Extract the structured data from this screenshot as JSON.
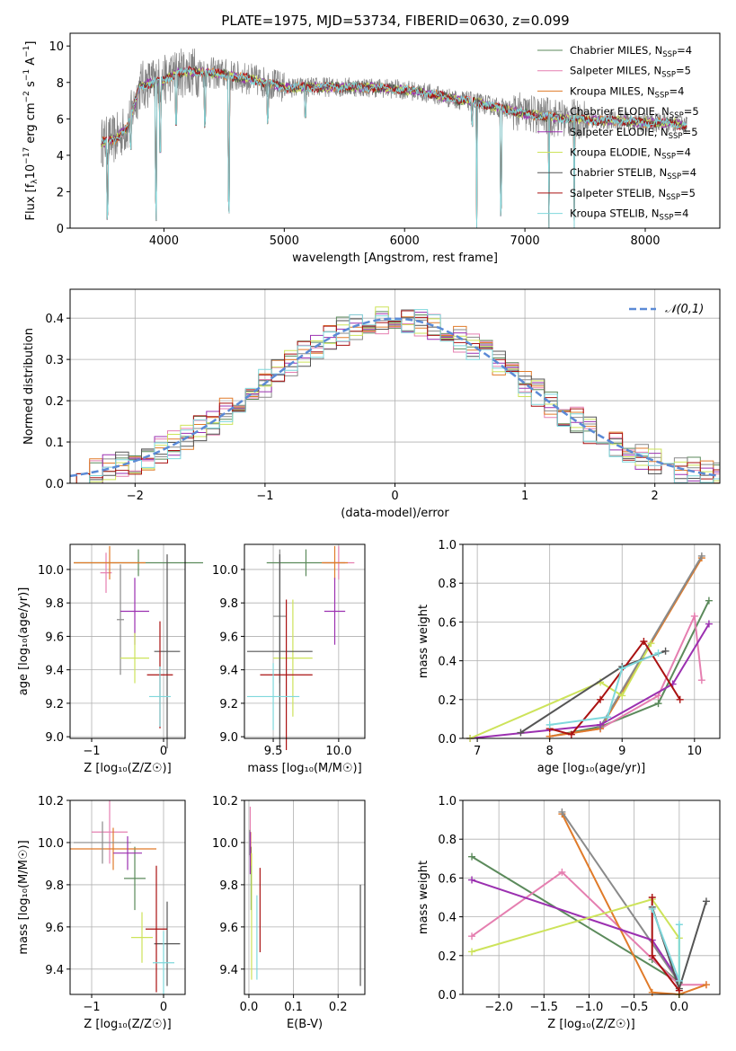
{
  "figure": {
    "title": "PLATE=1975, MJD=53734, FIBERID=0630, z=0.099"
  },
  "colors": {
    "Chabrier MILES": "#5b8a5b",
    "Salpeter MILES": "#e57fb0",
    "Kroupa MILES": "#e07b2a",
    "Chabrier ELODIE": "#8a8a8a",
    "Salpeter ELODIE": "#9b30b0",
    "Kroupa ELODIE": "#cde35a",
    "Chabrier STELIB": "#555555",
    "Salpeter STELIB": "#aa1111",
    "Kroupa STELIB": "#7fd8dc"
  },
  "chart_data": [
    {
      "id": "spectrum",
      "type": "line",
      "title": "PLATE=1975, MJD=53734, FIBERID=0630, z=0.099",
      "xlabel": "wavelength [Angstrom, rest frame]",
      "ylabel_parts": [
        "Flux [f",
        "λ",
        "10",
        "−17",
        " erg cm",
        "−2",
        " s",
        "−1",
        " A",
        "−1",
        "]"
      ],
      "xlim": [
        3220,
        8620
      ],
      "ylim": [
        0,
        10.7
      ],
      "xticks": [
        4000,
        5000,
        6000,
        7000,
        8000
      ],
      "yticks": [
        0,
        2,
        4,
        6,
        8,
        10
      ],
      "grid": false,
      "legend_position": "top-right",
      "legend": [
        {
          "model": "Chabrier MILES",
          "text": "Chabrier MILES, N",
          "sub": "SSP",
          "n": "=4"
        },
        {
          "model": "Salpeter MILES",
          "text": "Salpeter MILES, N",
          "sub": "SSP",
          "n": "=5"
        },
        {
          "model": "Kroupa MILES",
          "text": "Kroupa MILES, N",
          "sub": "SSP",
          "n": "=4"
        },
        {
          "model": "Chabrier ELODIE",
          "text": "Chabrier ELODIE, N",
          "sub": "SSP",
          "n": "=5"
        },
        {
          "model": "Salpeter ELODIE",
          "text": "Salpeter ELODIE, N",
          "sub": "SSP",
          "n": "=5"
        },
        {
          "model": "Kroupa ELODIE",
          "text": "Kroupa ELODIE, N",
          "sub": "SSP",
          "n": "=4"
        },
        {
          "model": "Chabrier STELIB",
          "text": "Chabrier STELIB, N",
          "sub": "SSP",
          "n": "=4"
        },
        {
          "model": "Salpeter STELIB",
          "text": "Salpeter STELIB, N",
          "sub": "SSP",
          "n": "=5"
        },
        {
          "model": "Kroupa STELIB",
          "text": "Kroupa STELIB, N",
          "sub": "SSP",
          "n": "=4"
        }
      ],
      "continuum": {
        "x": [
          3480,
          3600,
          3700,
          3800,
          3900,
          4000,
          4100,
          4200,
          4300,
          4400,
          4500,
          4600,
          4700,
          4800,
          4900,
          5000,
          5200,
          5400,
          5600,
          5800,
          6000,
          6200,
          6400,
          6600,
          6800,
          7000,
          7200,
          7400,
          7600,
          7800,
          8000,
          8200,
          8350
        ],
        "y": [
          4.7,
          4.9,
          5.6,
          7.8,
          8.0,
          8.1,
          8.5,
          8.6,
          8.55,
          8.5,
          8.45,
          8.3,
          8.2,
          8.05,
          7.9,
          7.7,
          7.75,
          7.75,
          7.75,
          7.7,
          7.6,
          7.4,
          7.1,
          6.9,
          6.6,
          6.3,
          6.1,
          6.0,
          5.9,
          5.9,
          5.8,
          5.8,
          5.6
        ]
      },
      "dips": [
        {
          "x": 3530,
          "y": 0
        },
        {
          "x": 3725,
          "y": 4.2
        },
        {
          "x": 3935,
          "y": 0
        },
        {
          "x": 3969,
          "y": 3.5
        },
        {
          "x": 4101,
          "y": 5.2
        },
        {
          "x": 4340,
          "y": 5.2
        },
        {
          "x": 4540,
          "y": 0
        },
        {
          "x": 4861,
          "y": 5.6
        },
        {
          "x": 5175,
          "y": 5.8
        },
        {
          "x": 6563,
          "y": 5.5
        },
        {
          "x": 6600,
          "y": 0
        },
        {
          "x": 6800,
          "y": 0
        },
        {
          "x": 7200,
          "y": 0
        },
        {
          "x": 7410,
          "y": 0
        }
      ]
    },
    {
      "id": "residuals",
      "type": "area",
      "xlabel": "(data-model)/error",
      "ylabel": "Normed distribution",
      "xlim": [
        -2.5,
        2.5
      ],
      "ylim": [
        0,
        0.47
      ],
      "xticks": [
        -2,
        -1,
        0,
        1,
        2
      ],
      "yticks": [
        0.0,
        0.1,
        0.2,
        0.3,
        0.4
      ],
      "grid": true,
      "legend_position": "top-right",
      "legend_label": "𝒩(0,1)",
      "bin_width": 0.1
    },
    {
      "id": "age-vs-Z",
      "type": "scatter",
      "xlabel": "Z [log₁₀(Z/Z☉)]",
      "ylabel": "age  [log₁₀(age/yr)]",
      "xlim": [
        -1.3,
        0.3
      ],
      "ylim": [
        8.99,
        10.15
      ],
      "xticks": [
        -1,
        0
      ],
      "yticks": [
        9.0,
        9.2,
        9.4,
        9.6,
        9.8,
        10.0
      ],
      "grid": true,
      "points": [
        {
          "model": "Chabrier MILES",
          "x": -0.35,
          "xerr": 0.9,
          "y": 10.04,
          "yerr": 0.08
        },
        {
          "model": "Salpeter MILES",
          "x": -0.8,
          "xerr": 0.08,
          "y": 9.98,
          "yerr": 0.12
        },
        {
          "model": "Kroupa MILES",
          "x": -0.75,
          "xerr": 0.5,
          "y": 10.04,
          "yerr": 0.1
        },
        {
          "model": "Chabrier ELODIE",
          "x": -0.6,
          "xerr": 0.05,
          "y": 9.7,
          "yerr": 0.33
        },
        {
          "model": "Salpeter ELODIE",
          "x": -0.4,
          "xerr": 0.2,
          "y": 9.75,
          "yerr": 0.2
        },
        {
          "model": "Kroupa ELODIE",
          "x": -0.4,
          "xerr": 0.2,
          "y": 9.47,
          "yerr": 0.15
        },
        {
          "model": "Chabrier STELIB",
          "x": 0.05,
          "xerr": 0.18,
          "y": 9.51,
          "yerr": 0.58
        },
        {
          "model": "Salpeter STELIB",
          "x": -0.05,
          "xerr": 0.18,
          "y": 9.37,
          "yerr": 0.32
        },
        {
          "model": "Kroupa STELIB",
          "x": -0.05,
          "xerr": 0.15,
          "y": 9.24,
          "yerr": 0.18
        }
      ]
    },
    {
      "id": "age-vs-mass",
      "type": "scatter",
      "xlabel": "mass [log₁₀(M/M☉)]",
      "ylabel": "",
      "xlim": [
        9.28,
        10.2
      ],
      "ylim": [
        8.99,
        10.15
      ],
      "xticks": [
        9.5,
        10.0
      ],
      "yticks": [
        9.0,
        9.2,
        9.4,
        9.6,
        9.8,
        10.0
      ],
      "grid": true,
      "points": [
        {
          "model": "Chabrier MILES",
          "x": 9.75,
          "xerr": 0.3,
          "y": 10.04,
          "yerr": 0.08
        },
        {
          "model": "Salpeter MILES",
          "x": 10.0,
          "xerr": 0.12,
          "y": 10.04,
          "yerr": 0.1
        },
        {
          "model": "Kroupa MILES",
          "x": 9.97,
          "xerr": 0.1,
          "y": 10.04,
          "yerr": 0.1
        },
        {
          "model": "Chabrier ELODIE",
          "x": 9.55,
          "xerr": 0.05,
          "y": 9.72,
          "yerr": 0.4
        },
        {
          "model": "Salpeter ELODIE",
          "x": 9.97,
          "xerr": 0.08,
          "y": 9.75,
          "yerr": 0.2
        },
        {
          "model": "Kroupa ELODIE",
          "x": 9.65,
          "xerr": 0.15,
          "y": 9.47,
          "yerr": 0.35
        },
        {
          "model": "Chabrier STELIB",
          "x": 9.55,
          "xerr": 0.25,
          "y": 9.51,
          "yerr": 0.58
        },
        {
          "model": "Salpeter STELIB",
          "x": 9.6,
          "xerr": 0.2,
          "y": 9.37,
          "yerr": 0.45
        },
        {
          "model": "Kroupa STELIB",
          "x": 9.5,
          "xerr": 0.2,
          "y": 9.24,
          "yerr": 0.2
        }
      ]
    },
    {
      "id": "mass-weight-vs-age",
      "type": "line",
      "xlabel": "age  [log₁₀(age/yr)]",
      "ylabel": "mass weight",
      "xlim": [
        6.8,
        10.35
      ],
      "ylim": [
        0,
        1.0
      ],
      "xticks": [
        7,
        8,
        9,
        10
      ],
      "yticks": [
        0.0,
        0.2,
        0.4,
        0.6,
        0.8,
        1.0
      ],
      "grid": true,
      "series": [
        {
          "model": "Chabrier MILES",
          "x": [
            8.0,
            8.7,
            9.5,
            10.2
          ],
          "y": [
            0.01,
            0.06,
            0.18,
            0.71
          ]
        },
        {
          "model": "Salpeter MILES",
          "x": [
            8.0,
            8.7,
            9.5,
            10.0,
            10.1
          ],
          "y": [
            0.01,
            0.05,
            0.22,
            0.63,
            0.3
          ]
        },
        {
          "model": "Kroupa MILES",
          "x": [
            8.0,
            8.7,
            10.1
          ],
          "y": [
            0.01,
            0.05,
            0.93
          ]
        },
        {
          "model": "Chabrier ELODIE",
          "x": [
            8.7,
            10.1
          ],
          "y": [
            0.06,
            0.94
          ]
        },
        {
          "model": "Salpeter ELODIE",
          "x": [
            6.9,
            8.7,
            9.7,
            10.2
          ],
          "y": [
            0.0,
            0.07,
            0.28,
            0.59
          ]
        },
        {
          "model": "Kroupa ELODIE",
          "x": [
            6.9,
            8.7,
            9.0,
            9.4
          ],
          "y": [
            0.0,
            0.29,
            0.22,
            0.49
          ]
        },
        {
          "model": "Chabrier STELIB",
          "x": [
            7.6,
            9.0,
            9.6
          ],
          "y": [
            0.03,
            0.37,
            0.45
          ]
        },
        {
          "model": "Salpeter STELIB",
          "x": [
            8.0,
            8.3,
            8.7,
            9.3,
            9.8
          ],
          "y": [
            0.05,
            0.02,
            0.2,
            0.5,
            0.2
          ]
        },
        {
          "model": "Kroupa STELIB",
          "x": [
            8.0,
            8.8,
            9.0,
            9.5
          ],
          "y": [
            0.07,
            0.11,
            0.36,
            0.44
          ]
        }
      ]
    },
    {
      "id": "mass-vs-Z",
      "type": "scatter",
      "xlabel": "Z [log₁₀(Z/Z☉)]",
      "ylabel": "mass [log₁₀(M/M☉)]",
      "xlim": [
        -1.3,
        0.3
      ],
      "ylim": [
        9.28,
        10.2
      ],
      "xticks": [
        -1,
        0
      ],
      "yticks": [
        9.4,
        9.6,
        9.8,
        10.0,
        10.2
      ],
      "grid": true,
      "points": [
        {
          "model": "Chabrier MILES",
          "x": -0.4,
          "xerr": 0.15,
          "y": 9.83,
          "yerr": 0.15
        },
        {
          "model": "Salpeter MILES",
          "x": -0.75,
          "xerr": 0.25,
          "y": 10.05,
          "yerr": 0.15
        },
        {
          "model": "Kroupa MILES",
          "x": -0.7,
          "xerr": 0.6,
          "y": 9.97,
          "yerr": 0.1
        },
        {
          "model": "Chabrier ELODIE",
          "x": -0.85,
          "xerr": 0.4,
          "y": 10.0,
          "yerr": 0.1
        },
        {
          "model": "Salpeter ELODIE",
          "x": -0.5,
          "xerr": 0.2,
          "y": 9.95,
          "yerr": 0.08
        },
        {
          "model": "Kroupa ELODIE",
          "x": -0.3,
          "xerr": 0.15,
          "y": 9.55,
          "yerr": 0.12
        },
        {
          "model": "Chabrier STELIB",
          "x": 0.05,
          "xerr": 0.18,
          "y": 9.52,
          "yerr": 0.2
        },
        {
          "model": "Salpeter STELIB",
          "x": -0.1,
          "xerr": 0.15,
          "y": 9.59,
          "yerr": 0.3
        },
        {
          "model": "Kroupa STELIB",
          "x": 0.0,
          "xerr": 0.15,
          "y": 9.43,
          "yerr": 0.15
        }
      ]
    },
    {
      "id": "mass-vs-ebv",
      "type": "scatter",
      "xlabel": "E(B-V)",
      "ylabel": "",
      "xlim": [
        -0.01,
        0.26
      ],
      "ylim": [
        9.28,
        10.2
      ],
      "xticks": [
        0.0,
        0.1,
        0.2
      ],
      "yticks": [
        9.4,
        9.6,
        9.8,
        10.0,
        10.2
      ],
      "grid": true,
      "points": [
        {
          "model": "Chabrier MILES",
          "x": 0.005,
          "y": 9.83,
          "yerr": 0.15
        },
        {
          "model": "Salpeter MILES",
          "x": 0.003,
          "y": 10.05,
          "yerr": 0.12
        },
        {
          "model": "Kroupa MILES",
          "x": 0.004,
          "y": 9.97,
          "yerr": 0.08
        },
        {
          "model": "Chabrier ELODIE",
          "x": 0.002,
          "y": 10.0,
          "yerr": 0.06
        },
        {
          "model": "Salpeter ELODIE",
          "x": 0.003,
          "y": 9.95,
          "yerr": 0.1
        },
        {
          "model": "Kroupa ELODIE",
          "x": 0.006,
          "y": 9.65,
          "yerr": 0.3
        },
        {
          "model": "Chabrier STELIB",
          "x": 0.25,
          "y": 9.56,
          "yerr": 0.24
        },
        {
          "model": "Salpeter STELIB",
          "x": 0.025,
          "y": 9.68,
          "yerr": 0.2
        },
        {
          "model": "Kroupa STELIB",
          "x": 0.018,
          "y": 9.55,
          "yerr": 0.2
        }
      ]
    },
    {
      "id": "mass-weight-vs-Z",
      "type": "line",
      "xlabel": "Z [log₁₀(Z/Z☉)]",
      "ylabel": "mass weight",
      "xlim": [
        -2.4,
        0.45
      ],
      "ylim": [
        0,
        1.0
      ],
      "xticks": [
        -2.0,
        -1.5,
        -1.0,
        -0.5,
        0.0
      ],
      "yticks": [
        0.0,
        0.2,
        0.4,
        0.6,
        0.8,
        1.0
      ],
      "grid": true,
      "series": [
        {
          "model": "Chabrier MILES",
          "x": [
            -2.3,
            0.0,
            -0.3
          ],
          "y": [
            0.71,
            0.06,
            0.18
          ]
        },
        {
          "model": "Salpeter MILES",
          "x": [
            -2.3,
            -1.3,
            0.0,
            0.3
          ],
          "y": [
            0.3,
            0.63,
            0.05,
            0.05
          ]
        },
        {
          "model": "Kroupa MILES",
          "x": [
            -1.3,
            -0.3,
            0.0,
            0.3
          ],
          "y": [
            0.93,
            0.01,
            0.0,
            0.05
          ]
        },
        {
          "model": "Chabrier ELODIE",
          "x": [
            -1.3,
            0.0
          ],
          "y": [
            0.94,
            0.06
          ]
        },
        {
          "model": "Salpeter ELODIE",
          "x": [
            -2.3,
            -0.3,
            0.0
          ],
          "y": [
            0.59,
            0.28,
            0.07
          ]
        },
        {
          "model": "Kroupa ELODIE",
          "x": [
            -2.3,
            -0.3,
            0.0,
            0.0
          ],
          "y": [
            0.22,
            0.49,
            0.29,
            0.0
          ]
        },
        {
          "model": "Chabrier STELIB",
          "x": [
            -0.3,
            0.0,
            0.3
          ],
          "y": [
            0.45,
            0.03,
            0.48
          ]
        },
        {
          "model": "Salpeter STELIB",
          "x": [
            -0.3,
            -0.3,
            0.0
          ],
          "y": [
            0.5,
            0.2,
            0.02
          ]
        },
        {
          "model": "Kroupa STELIB",
          "x": [
            -0.3,
            0.0,
            0.0
          ],
          "y": [
            0.44,
            0.07,
            0.36
          ]
        }
      ]
    }
  ]
}
